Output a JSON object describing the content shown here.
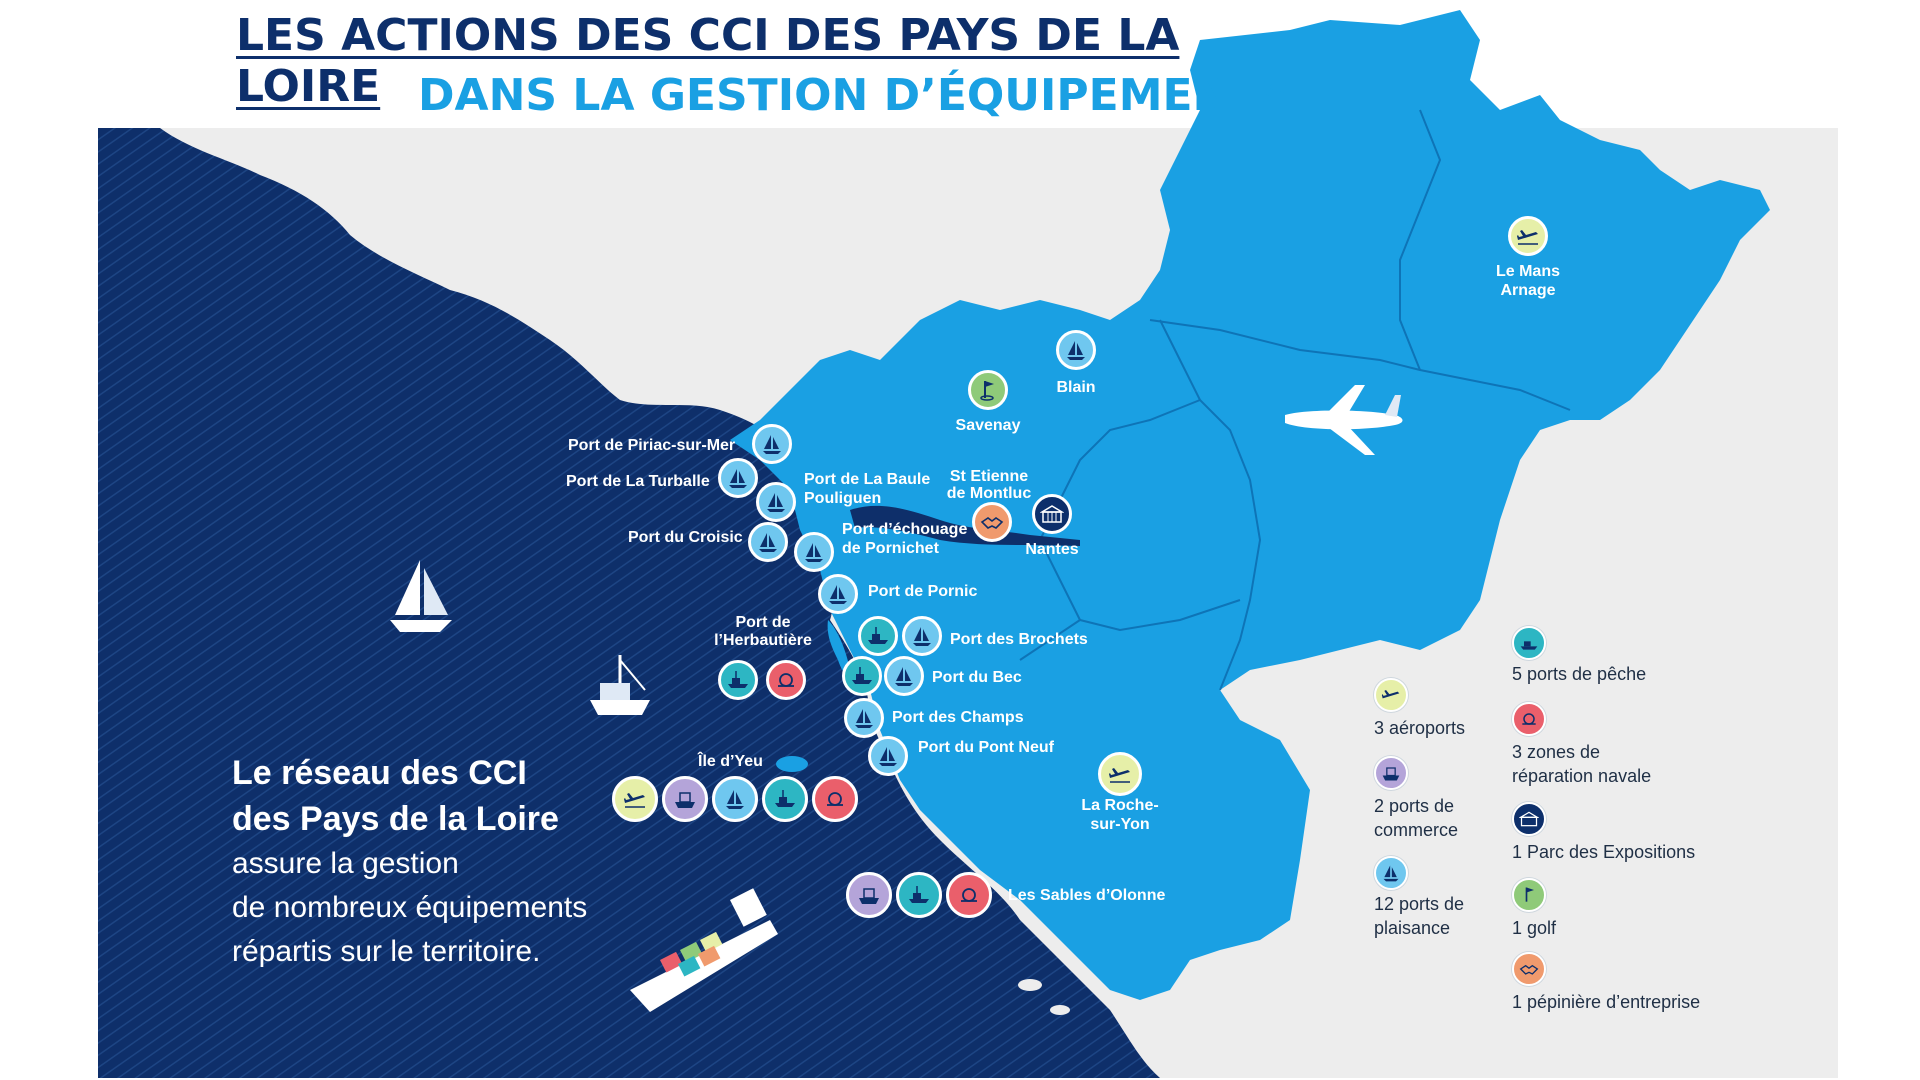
{
  "title": {
    "line1": "LES ACTIONS DES CCI DES PAYS DE LA LOIRE",
    "line2": "DANS LA GESTION D’ÉQUIPEMENTS"
  },
  "colors": {
    "sea": "#0e2f6a",
    "land_region": "#1aa0e3",
    "land_other": "#ededed",
    "title_dark": "#0d2f6b",
    "title_light": "#1aa0e3"
  },
  "places": {
    "le_mans": "Le Mans\nArnage",
    "blain": "Blain",
    "savenay": "Savenay",
    "st_etienne": "St Etienne\nde Montluc",
    "nantes": "Nantes",
    "piriac": "Port de Piriac-sur-Mer",
    "turballe": "Port de La Turballe",
    "baule": "Port de La Baule\nPouliguen",
    "croisic": "Port du Croisic",
    "pornichet": "Port d’échouage\nde Pornichet",
    "pornic": "Port de Pornic",
    "herbaudiere": "Port de\nl’Herbautière",
    "brochets": "Port des Brochets",
    "bec": "Port du Bec",
    "champs": "Port des Champs",
    "pont_neuf": "Port du Pont Neuf",
    "yeu": "Île d’Yeu",
    "roche": "La Roche-\nsur-Yon",
    "sables": "Les Sables d’Olonne"
  },
  "intro": {
    "heading1": "Le réseau des CCI",
    "heading2": "des Pays de la Loire",
    "line1": "assure la gestion",
    "line2": "de nombreux équipements",
    "line3": "répartis sur le territoire."
  },
  "legend": {
    "aeroports": "3 aéroports",
    "commerce": "2 ports de\ncommerce",
    "plaisance": "12 ports de\nplaisance",
    "peche": "5 ports de pêche",
    "reparation": "3 zones de\nréparation navale",
    "expositions": "1 Parc des Expositions",
    "golf": "1 golf",
    "pepiniere": "1 pépinière d’entreprise"
  },
  "icon_names": [
    "sailboat-icon",
    "fishing-boat-icon",
    "repair-icon",
    "plane-icon",
    "cargo-ship-icon",
    "exhibition-icon",
    "golf-icon",
    "handshake-icon"
  ]
}
